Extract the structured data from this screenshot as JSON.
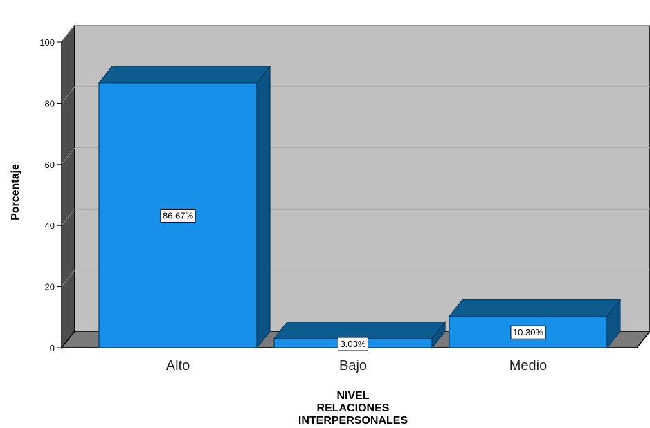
{
  "chart_data": {
    "type": "bar",
    "style": "3d",
    "categories": [
      "Alto",
      "Bajo",
      "Medio"
    ],
    "values": [
      86.67,
      3.03,
      10.3
    ],
    "data_labels": [
      "86.67%",
      "3.03%",
      "10.30%"
    ],
    "ylabel": "Porcentaje",
    "xlabel": [
      "NIVEL",
      "RELACIONES",
      "INTERPERSONALES"
    ],
    "ylim": [
      0,
      100
    ],
    "yticks": [
      0,
      20,
      40,
      60,
      80,
      100
    ],
    "grid": true,
    "colors": {
      "bar_front": "#1690e8",
      "bar_top": "#0d5c8f",
      "bar_side": "#0b5385",
      "plot_bg": "#c0c0c0",
      "floor": "#7a7a7a",
      "wall_left": "#4d4d4d",
      "grid": "#a9a9a9"
    }
  }
}
